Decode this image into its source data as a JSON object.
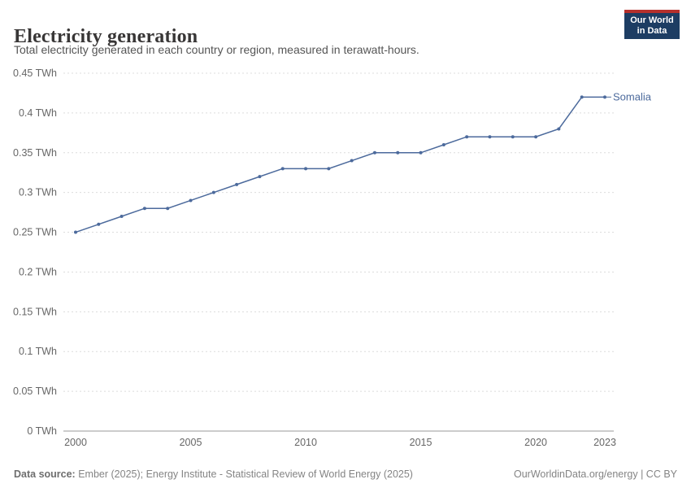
{
  "header": {
    "title": "Electricity generation",
    "subtitle": "Total electricity generated in each country or region, measured in terawatt-hours.",
    "logo": {
      "line1": "Our World",
      "line2": "in Data"
    }
  },
  "chart_data": {
    "type": "line",
    "title": "Electricity generation",
    "unit": "TWh",
    "x": [
      2000,
      2001,
      2002,
      2003,
      2004,
      2005,
      2006,
      2007,
      2008,
      2009,
      2010,
      2011,
      2012,
      2013,
      2014,
      2015,
      2016,
      2017,
      2018,
      2019,
      2020,
      2021,
      2022,
      2023
    ],
    "series": [
      {
        "name": "Somalia",
        "color": "#4C6A9C",
        "values": [
          0.25,
          0.26,
          0.27,
          0.28,
          0.28,
          0.29,
          0.3,
          0.31,
          0.32,
          0.33,
          0.33,
          0.33,
          0.34,
          0.35,
          0.35,
          0.35,
          0.36,
          0.37,
          0.37,
          0.37,
          0.37,
          0.38,
          0.42,
          0.42
        ]
      }
    ],
    "xlim": [
      2000,
      2023
    ],
    "ylim": [
      0,
      0.45
    ],
    "xticks": [
      2000,
      2005,
      2010,
      2015,
      2020,
      2023
    ],
    "yticks": [
      {
        "value": 0,
        "label": "0 TWh"
      },
      {
        "value": 0.05,
        "label": "0.05 TWh"
      },
      {
        "value": 0.1,
        "label": "0.1 TWh"
      },
      {
        "value": 0.15,
        "label": "0.15 TWh"
      },
      {
        "value": 0.2,
        "label": "0.2 TWh"
      },
      {
        "value": 0.25,
        "label": "0.25 TWh"
      },
      {
        "value": 0.3,
        "label": "0.3 TWh"
      },
      {
        "value": 0.35,
        "label": "0.35 TWh"
      },
      {
        "value": 0.4,
        "label": "0.4 TWh"
      },
      {
        "value": 0.45,
        "label": "0.45 TWh"
      }
    ],
    "grid": "horizontal dashed",
    "legend_position": "end-of-line label"
  },
  "footer": {
    "source_label": "Data source:",
    "source_text": " Ember (2025); Energy Institute - Statistical Review of World Energy (2025)",
    "credit": "OurWorldinData.org/energy | CC BY"
  },
  "colors": {
    "line": "#4C6A9C",
    "grid": "#dcdcdc",
    "axis": "#9a9a9a",
    "tick_text": "#666666",
    "logo_bg": "#1d3d63",
    "logo_accent": "#b5302c"
  }
}
